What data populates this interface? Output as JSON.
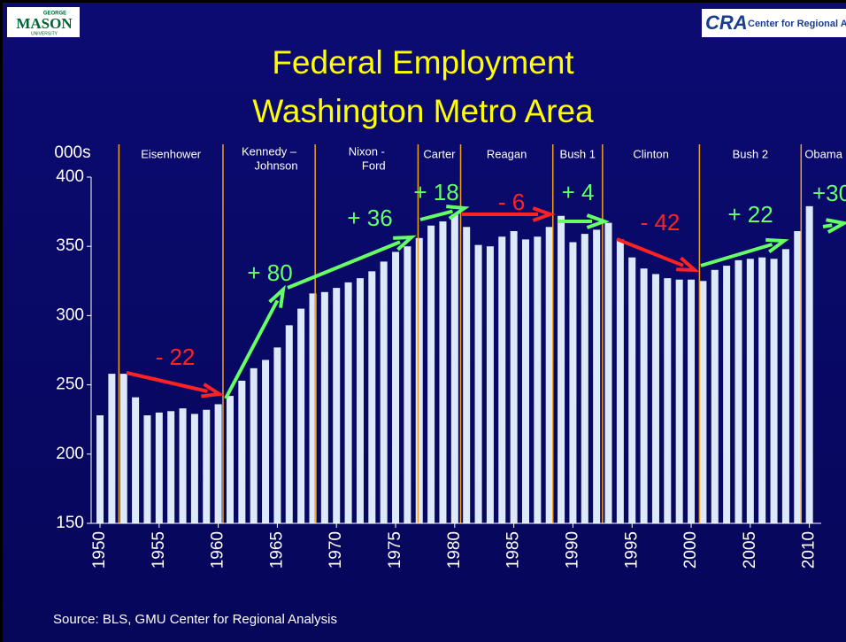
{
  "logos": {
    "left": {
      "small": "GEORGE",
      "main": "MASON",
      "sub": "UNIVERSITY"
    },
    "right": {
      "mark": "CRA",
      "text": "Center for Regional Analy"
    }
  },
  "chart_data": {
    "type": "bar",
    "title": [
      "Federal Employment",
      "Washington Metro Area"
    ],
    "y_unit": "000s",
    "source": "Source: BLS, GMU Center for Regional Analysis",
    "color": "#dde8f8",
    "x": [
      1950,
      1951,
      1952,
      1953,
      1954,
      1955,
      1956,
      1957,
      1958,
      1959,
      1960,
      1961,
      1962,
      1963,
      1964,
      1965,
      1966,
      1967,
      1968,
      1969,
      1970,
      1971,
      1972,
      1973,
      1974,
      1975,
      1976,
      1977,
      1978,
      1979,
      1980,
      1981,
      1982,
      1983,
      1984,
      1985,
      1986,
      1987,
      1988,
      1989,
      1990,
      1991,
      1992,
      1993,
      1994,
      1995,
      1996,
      1997,
      1998,
      1999,
      2000,
      2001,
      2002,
      2003,
      2004,
      2005,
      2006,
      2007,
      2008,
      2009,
      2010
    ],
    "values": [
      228,
      258,
      258,
      241,
      228,
      230,
      231,
      233,
      229,
      232,
      236,
      242,
      253,
      262,
      268,
      277,
      293,
      305,
      316,
      317,
      320,
      324,
      327,
      332,
      339,
      346,
      350,
      356,
      365,
      368,
      373,
      364,
      351,
      350,
      357,
      361,
      355,
      357,
      364,
      372,
      353,
      359,
      362,
      367,
      355,
      342,
      334,
      330,
      327,
      326,
      326,
      325,
      333,
      336,
      340,
      341,
      342,
      341,
      348,
      361,
      379
    ],
    "xlim": [
      1949.25,
      2011
    ],
    "xticks": [
      1950,
      1955,
      1960,
      1965,
      1970,
      1975,
      1980,
      1985,
      1990,
      1995,
      2000,
      2005,
      2010
    ],
    "ylim": [
      150,
      400
    ],
    "yticks": [
      150,
      200,
      250,
      300,
      350,
      400
    ],
    "eras": [
      {
        "name": [
          "Eisenhower"
        ],
        "start": 1951.6
      },
      {
        "name": [
          "Kennedy –",
          "Johnson"
        ],
        "start": 1960.4
      },
      {
        "name": [
          "Nixon -",
          "Ford"
        ],
        "start": 1968.2
      },
      {
        "name": [
          "Carter"
        ],
        "start": 1976.9
      },
      {
        "name": [
          "Reagan"
        ],
        "start": 1980.5
      },
      {
        "name": [
          "Bush 1"
        ],
        "start": 1988.3
      },
      {
        "name": [
          "Clinton"
        ],
        "start": 1992.5
      },
      {
        "name": [
          "Bush 2"
        ],
        "start": 2000.7
      },
      {
        "name": [
          "Obama"
        ],
        "start": 2009.3
      }
    ],
    "annotations": [
      {
        "text": "- 22",
        "color": "#ff2222"
      },
      {
        "text": "+ 80",
        "color": "#66ff66"
      },
      {
        "text": "+ 36",
        "color": "#66ff66"
      },
      {
        "text": "+ 18",
        "color": "#66ff66"
      },
      {
        "text": "- 6",
        "color": "#ff2222"
      },
      {
        "text": "+ 4",
        "color": "#66ff66"
      },
      {
        "text": "- 42",
        "color": "#ff2222"
      },
      {
        "text": "+ 22",
        "color": "#66ff66"
      },
      {
        "text": "+30",
        "color": "#66ff66"
      }
    ]
  }
}
